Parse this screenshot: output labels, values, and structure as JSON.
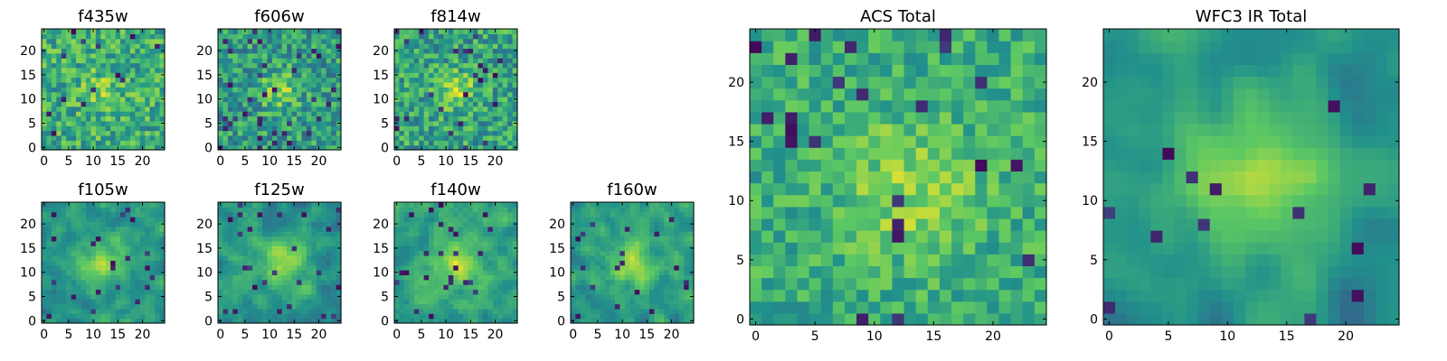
{
  "figure": {
    "colormap": "viridis",
    "colormap_stops": [
      "#440154",
      "#3b528b",
      "#21918c",
      "#5ec962",
      "#fde725"
    ],
    "background": "#ffffff"
  },
  "chart_data": [
    {
      "type": "heatmap",
      "title": "f435w",
      "grid_size": 25,
      "xticks": [
        0,
        5,
        10,
        15,
        20
      ],
      "yticks": [
        0,
        5,
        10,
        15,
        20
      ],
      "seed": 11,
      "center": [
        12,
        12
      ],
      "blob_sigma": 3.0,
      "blob_amp": 0.15,
      "base": 0.62,
      "noise": 0.22,
      "smooth": 0,
      "dark_fraction": 0.03
    },
    {
      "type": "heatmap",
      "title": "f606w",
      "grid_size": 25,
      "xticks": [
        0,
        5,
        10,
        15,
        20
      ],
      "yticks": [
        0,
        5,
        10,
        15,
        20
      ],
      "seed": 23,
      "center": [
        12,
        12
      ],
      "blob_sigma": 2.5,
      "blob_amp": 0.3,
      "base": 0.55,
      "noise": 0.22,
      "smooth": 0,
      "dark_fraction": 0.05
    },
    {
      "type": "heatmap",
      "title": "f814w",
      "grid_size": 25,
      "xticks": [
        0,
        5,
        10,
        15,
        20
      ],
      "yticks": [
        0,
        5,
        10,
        15,
        20
      ],
      "seed": 37,
      "center": [
        12,
        12
      ],
      "blob_sigma": 2.5,
      "blob_amp": 0.3,
      "base": 0.58,
      "noise": 0.22,
      "smooth": 0,
      "dark_fraction": 0.04
    },
    {
      "type": "heatmap",
      "title": "f105w",
      "grid_size": 25,
      "xticks": [
        0,
        5,
        10,
        15,
        20
      ],
      "yticks": [
        0,
        5,
        10,
        15,
        20
      ],
      "seed": 41,
      "center": [
        12,
        12
      ],
      "blob_sigma": 3.5,
      "blob_amp": 0.32,
      "base": 0.52,
      "noise": 0.16,
      "smooth": 1,
      "dark_fraction": 0.04
    },
    {
      "type": "heatmap",
      "title": "f125w",
      "grid_size": 25,
      "xticks": [
        0,
        5,
        10,
        15,
        20
      ],
      "yticks": [
        0,
        5,
        10,
        15,
        20
      ],
      "seed": 53,
      "center": [
        13,
        12
      ],
      "blob_sigma": 3.5,
      "blob_amp": 0.32,
      "base": 0.52,
      "noise": 0.16,
      "smooth": 1,
      "dark_fraction": 0.05
    },
    {
      "type": "heatmap",
      "title": "f140w",
      "grid_size": 25,
      "xticks": [
        0,
        5,
        10,
        15,
        20
      ],
      "yticks": [
        0,
        5,
        10,
        15,
        20
      ],
      "seed": 67,
      "center": [
        12,
        12
      ],
      "blob_sigma": 3.5,
      "blob_amp": 0.28,
      "base": 0.58,
      "noise": 0.16,
      "smooth": 1,
      "dark_fraction": 0.03
    },
    {
      "type": "heatmap",
      "title": "f160w",
      "grid_size": 25,
      "xticks": [
        0,
        5,
        10,
        15,
        20
      ],
      "yticks": [
        0,
        5,
        10,
        15,
        20
      ],
      "seed": 79,
      "center": [
        12,
        12
      ],
      "blob_sigma": 3.5,
      "blob_amp": 0.32,
      "base": 0.55,
      "noise": 0.16,
      "smooth": 1,
      "dark_fraction": 0.04
    },
    {
      "type": "heatmap",
      "title": "ACS Total",
      "grid_size": 25,
      "xticks": [
        0,
        5,
        10,
        15,
        20
      ],
      "yticks": [
        0,
        5,
        10,
        15,
        20
      ],
      "seed": 97,
      "center": [
        13,
        11
      ],
      "blob_sigma": 4.0,
      "blob_amp": 0.2,
      "base": 0.62,
      "noise": 0.16,
      "smooth": 0,
      "dark_fraction": 0.04
    },
    {
      "type": "heatmap",
      "title": "WFC3 IR Total",
      "grid_size": 25,
      "xticks": [
        0,
        5,
        10,
        15,
        20
      ],
      "yticks": [
        0,
        5,
        10,
        15,
        20
      ],
      "seed": 131,
      "center": [
        13,
        12
      ],
      "blob_sigma": 4.5,
      "blob_amp": 0.38,
      "base": 0.5,
      "noise": 0.1,
      "smooth": 2,
      "dark_fraction": 0.03
    }
  ]
}
